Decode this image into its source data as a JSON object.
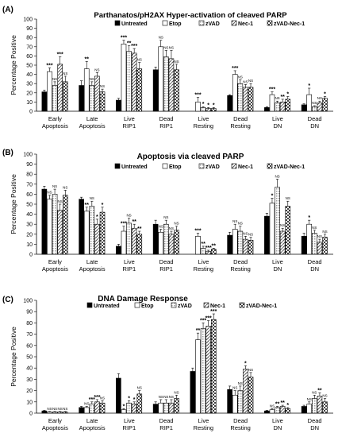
{
  "chart_data": [
    {
      "type": "bar",
      "panel_label": "(A)",
      "title": "Parthanatos/pH2AX Hyper-activation of cleaved PARP",
      "ylabel": "Percentage Positive",
      "ylim": [
        0,
        100
      ],
      "yticks": [
        0,
        10,
        20,
        30,
        40,
        50,
        60,
        70,
        80,
        90,
        100
      ],
      "legend_position": "top-right",
      "categories": [
        "Early Apoptosis",
        "Late Apoptosis",
        "Live RIP1",
        "Dead RIP1",
        "Live Resting",
        "Dead Resting",
        "Live DN",
        "Dead DN"
      ],
      "series": [
        {
          "name": "Untreated",
          "values": [
            21,
            28,
            12,
            45,
            0,
            17,
            4,
            7
          ],
          "errors": [
            2,
            5,
            2,
            3,
            0,
            1,
            1,
            1
          ],
          "annotations": [
            "",
            "",
            "",
            "",
            "",
            "",
            "",
            ""
          ]
        },
        {
          "name": "Etop",
          "values": [
            43,
            46,
            73,
            70,
            10,
            40,
            18,
            18
          ],
          "errors": [
            4,
            8,
            4,
            7,
            5,
            4,
            3,
            7
          ],
          "annotations": [
            "***",
            "**",
            "***",
            "NS",
            "***",
            "***",
            "***",
            "*"
          ]
        },
        {
          "name": "zVAD",
          "values": [
            28,
            28,
            65,
            59,
            4,
            30,
            9,
            5
          ],
          "errors": [
            4,
            4,
            6,
            7,
            1,
            4,
            2,
            1
          ],
          "annotations": [
            "NS",
            "NS",
            "**",
            "NS",
            "*",
            "NS",
            "NS",
            "NS"
          ]
        },
        {
          "name": "Nec-1",
          "values": [
            51,
            38,
            63,
            57,
            3,
            26,
            10,
            9
          ],
          "errors": [
            8,
            4,
            5,
            9,
            1,
            3,
            3,
            2
          ],
          "annotations": [
            "***",
            "NS",
            "***",
            "NS",
            "*",
            "NS",
            "**",
            "NS"
          ]
        },
        {
          "name": "zVAD-Nec-1",
          "values": [
            32,
            21,
            46,
            45,
            3,
            26,
            13,
            14
          ],
          "errors": [
            6,
            3,
            7,
            6,
            1,
            4,
            3,
            2
          ],
          "annotations": [
            "NS",
            "NS",
            "NS",
            "NS",
            "*",
            "NS",
            "*",
            "*"
          ]
        }
      ]
    },
    {
      "type": "bar",
      "panel_label": "(B)",
      "title": "Apoptosis via cleaved PARP",
      "ylabel": "Percentage Positive",
      "ylim": [
        0,
        100
      ],
      "yticks": [
        0,
        10,
        20,
        30,
        40,
        50,
        60,
        70,
        80,
        90,
        100
      ],
      "legend_position": "top-right",
      "categories": [
        "Early Apoptosis",
        "Late Apoptosis",
        "Live RIP1",
        "Dead RIP1",
        "Live Resting",
        "Dead Resting",
        "Live DN",
        "Dead DN"
      ],
      "series": [
        {
          "name": "Untreated",
          "values": [
            65,
            55,
            8,
            30,
            0,
            19,
            38,
            18
          ],
          "errors": [
            3,
            2,
            2,
            4,
            0,
            3,
            3,
            3
          ],
          "annotations": [
            "",
            "",
            "",
            "",
            "",
            "",
            "",
            ""
          ]
        },
        {
          "name": "Etop",
          "values": [
            55,
            43,
            23,
            22,
            18,
            25,
            51,
            30
          ],
          "errors": [
            4,
            4,
            5,
            3,
            3,
            5,
            5,
            4
          ],
          "annotations": [
            "NS",
            "**",
            "***",
            "NS",
            "***",
            "NS",
            "*",
            "*"
          ]
        },
        {
          "name": "zVAD",
          "values": [
            60,
            48,
            31,
            30,
            6,
            23,
            67,
            21
          ],
          "errors": [
            5,
            5,
            5,
            4,
            2,
            5,
            8,
            3
          ],
          "annotations": [
            "NS",
            "NS",
            "NS",
            "NS",
            "**",
            "NS",
            "NS",
            "NS"
          ]
        },
        {
          "name": "Nec-1",
          "values": [
            44,
            30,
            26,
            20,
            3,
            15,
            23,
            12
          ],
          "errors": [
            6,
            5,
            4,
            3,
            1,
            3,
            3,
            3
          ],
          "annotations": [
            "NS",
            "*",
            "**",
            "NS",
            "***",
            "NS",
            "NS",
            "NS"
          ]
        },
        {
          "name": "zVAD-Nec-1",
          "values": [
            59,
            42,
            20,
            24,
            5,
            14,
            48,
            17
          ],
          "errors": [
            5,
            5,
            3,
            4,
            1,
            3,
            5,
            3
          ],
          "annotations": [
            "NS",
            "*",
            "**",
            "NS",
            "**",
            "NS",
            "NS",
            "NS"
          ]
        }
      ]
    },
    {
      "type": "bar",
      "panel_label": "(C)",
      "title": "DNA Damage Response",
      "ylabel": "Percentage Positive",
      "ylim": [
        0,
        100
      ],
      "yticks": [
        0,
        10,
        20,
        30,
        40,
        50,
        60,
        70,
        80,
        90,
        100
      ],
      "legend_position": "top",
      "categories": [
        "Early Apoptosis",
        "Late Apoptosis",
        "Live RIP1",
        "Dead RIP1",
        "Live Resting",
        "Dead Resting",
        "Live DN",
        "Dead DN"
      ],
      "series": [
        {
          "name": "Untreated",
          "values": [
            2,
            5,
            31,
            8,
            37,
            21,
            2,
            6
          ],
          "errors": [
            0.5,
            1,
            4,
            2,
            3,
            3,
            0.5,
            1
          ],
          "annotations": [
            "",
            "",
            "",
            "",
            "",
            "",
            "",
            ""
          ]
        },
        {
          "name": "Etop",
          "values": [
            1,
            5,
            3,
            9,
            65,
            16,
            3,
            8
          ],
          "errors": [
            0.5,
            1,
            1,
            3,
            6,
            4,
            1,
            2
          ],
          "annotations": [
            "NS",
            "NS",
            "*",
            "NS",
            "**",
            "NS",
            "NS",
            "NS"
          ]
        },
        {
          "name": "zVAD",
          "values": [
            1,
            8,
            9,
            9,
            75,
            20,
            5,
            13
          ],
          "errors": [
            0.5,
            2,
            2,
            3,
            5,
            4,
            1,
            3
          ],
          "annotations": [
            "NS",
            "***",
            "*",
            "NS",
            "***",
            "NS",
            "**",
            "NS"
          ]
        },
        {
          "name": "Nec-1",
          "values": [
            1,
            10,
            8,
            9,
            77,
            39,
            6,
            15
          ],
          "errors": [
            0.5,
            2,
            2,
            3,
            5,
            3,
            1,
            3
          ],
          "annotations": [
            "NS",
            "***",
            "*",
            "NS",
            "***",
            "*",
            "**",
            "**"
          ]
        },
        {
          "name": "zVAD-Nec-1",
          "values": [
            1,
            9,
            17,
            13,
            83,
            32,
            4,
            10
          ],
          "errors": [
            0.5,
            2,
            3,
            3,
            5,
            4,
            1,
            3
          ],
          "annotations": [
            "NS",
            "NS",
            "NS",
            "NS",
            "***",
            "NS",
            "*",
            "NS"
          ]
        }
      ]
    }
  ],
  "colors": {
    "untreated": "#000000",
    "etop": "#ffffff",
    "zvad": "#c8c8c8",
    "nec1": "#cfcfcf",
    "zvad_nec1": "#a8a8a8",
    "axis": "#000000"
  }
}
